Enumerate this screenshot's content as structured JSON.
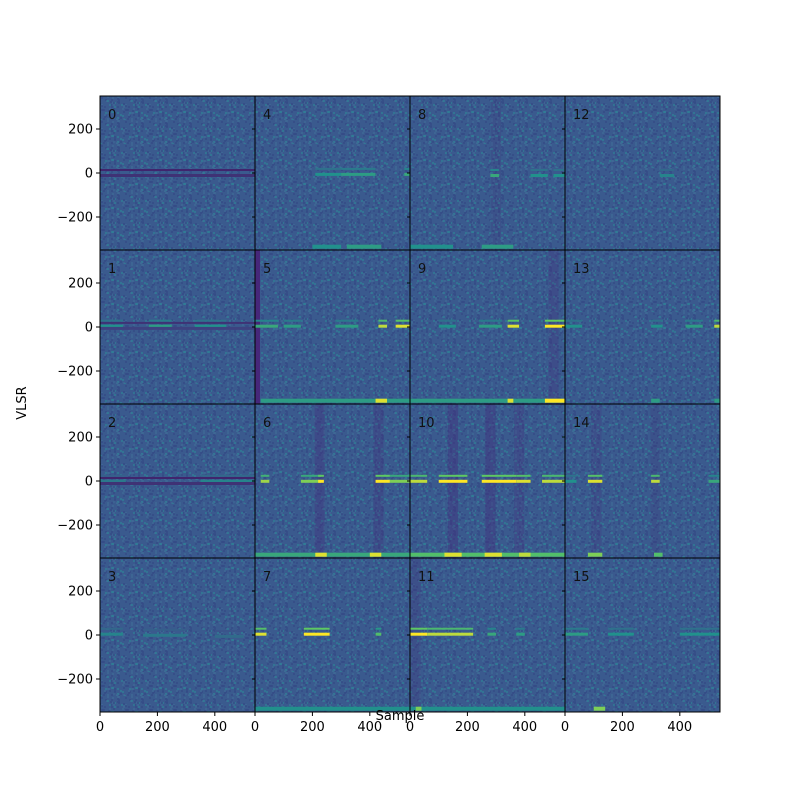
{
  "chart_data": {
    "type": "heatmap",
    "title": "",
    "xlabel": "Sample",
    "ylabel": "VLSR",
    "grid": false,
    "layout": {
      "rows": 4,
      "cols": 4,
      "order": "column-major"
    },
    "xlim": [
      0,
      540
    ],
    "ylim": [
      -350,
      350
    ],
    "x_ticks": [
      0,
      200,
      400
    ],
    "y_ticks": [
      200,
      0,
      -200
    ],
    "colormap": [
      "#440154",
      "#3b528b",
      "#21918c",
      "#5ec962",
      "#fde725"
    ],
    "background_color": "#3a5a8e",
    "panels": [
      {
        "label": "0",
        "streaks": [
          [
            200,
            260,
            0,
            0.4
          ],
          [
            330,
            440,
            0,
            0.4
          ],
          [
            0,
            540,
            0,
            0.15
          ]
        ],
        "bottom": [],
        "columns": []
      },
      {
        "label": "1",
        "streaks": [
          [
            0,
            80,
            15,
            0.5
          ],
          [
            170,
            250,
            15,
            0.55
          ],
          [
            330,
            440,
            15,
            0.5
          ],
          [
            0,
            540,
            5,
            0.2
          ]
        ],
        "bottom": [],
        "columns": []
      },
      {
        "label": "2",
        "streaks": [
          [
            0,
            90,
            10,
            0.4
          ],
          [
            350,
            540,
            10,
            0.45
          ],
          [
            0,
            540,
            0,
            0.15
          ]
        ],
        "bottom": [],
        "columns": []
      },
      {
        "label": "3",
        "streaks": [
          [
            0,
            80,
            15,
            0.45
          ],
          [
            150,
            300,
            10,
            0.4
          ],
          [
            400,
            500,
            5,
            0.35
          ]
        ],
        "bottom": [],
        "columns": []
      },
      {
        "label": "4",
        "streaks": [
          [
            210,
            300,
            5,
            0.5
          ],
          [
            300,
            420,
            5,
            0.55
          ],
          [
            520,
            540,
            5,
            0.6
          ]
        ],
        "bottom": [
          [
            200,
            300,
            0.5
          ],
          [
            320,
            440,
            0.55
          ]
        ],
        "columns": []
      },
      {
        "label": "5",
        "streaks": [
          [
            0,
            80,
            15,
            0.6
          ],
          [
            100,
            160,
            15,
            0.55
          ],
          [
            280,
            360,
            15,
            0.55
          ],
          [
            430,
            460,
            15,
            0.9
          ],
          [
            490,
            540,
            15,
            0.95
          ]
        ],
        "bottom": [
          [
            20,
            540,
            0.55
          ],
          [
            420,
            460,
            0.95
          ]
        ],
        "columns": [
          [
            0,
            150,
            0.12
          ]
        ]
      },
      {
        "label": "6",
        "streaks": [
          [
            20,
            50,
            10,
            0.85
          ],
          [
            160,
            230,
            10,
            0.8
          ],
          [
            220,
            240,
            10,
            1
          ],
          [
            420,
            470,
            10,
            1
          ],
          [
            470,
            540,
            10,
            0.8
          ]
        ],
        "bottom": [
          [
            0,
            540,
            0.6
          ],
          [
            210,
            250,
            0.95
          ],
          [
            400,
            440,
            0.95
          ]
        ],
        "columns": [
          [
            225,
            0.3
          ],
          [
            430,
            0.28
          ]
        ]
      },
      {
        "label": "7",
        "streaks": [
          [
            0,
            40,
            15,
            0.95
          ],
          [
            170,
            260,
            15,
            1
          ],
          [
            420,
            440,
            15,
            0.7
          ]
        ],
        "bottom": [
          [
            0,
            540,
            0.5
          ]
        ],
        "columns": []
      },
      {
        "label": "8",
        "streaks": [
          [
            280,
            310,
            0,
            0.6
          ],
          [
            420,
            480,
            0,
            0.5
          ],
          [
            500,
            540,
            0,
            0.5
          ]
        ],
        "bottom": [
          [
            0,
            150,
            0.5
          ],
          [
            250,
            360,
            0.55
          ]
        ],
        "columns": [
          [
            300,
            0.15
          ]
        ]
      },
      {
        "label": "9",
        "streaks": [
          [
            100,
            160,
            15,
            0.5
          ],
          [
            240,
            320,
            15,
            0.55
          ],
          [
            340,
            380,
            15,
            0.95
          ],
          [
            470,
            540,
            15,
            1
          ]
        ],
        "bottom": [
          [
            0,
            540,
            0.55
          ],
          [
            340,
            360,
            0.95
          ],
          [
            470,
            540,
            1
          ]
        ],
        "columns": [
          [
            500,
            0.25
          ]
        ]
      },
      {
        "label": "10",
        "streaks": [
          [
            0,
            60,
            10,
            0.9
          ],
          [
            100,
            200,
            10,
            1
          ],
          [
            250,
            370,
            10,
            1
          ],
          [
            370,
            420,
            10,
            0.95
          ],
          [
            460,
            540,
            10,
            0.9
          ]
        ],
        "bottom": [
          [
            0,
            540,
            0.7
          ],
          [
            120,
            180,
            0.95
          ],
          [
            260,
            320,
            0.95
          ],
          [
            380,
            420,
            0.9
          ]
        ],
        "columns": [
          [
            150,
            0.35
          ],
          [
            280,
            0.35
          ],
          [
            380,
            0.25
          ]
        ]
      },
      {
        "label": "11",
        "streaks": [
          [
            0,
            60,
            15,
            1
          ],
          [
            60,
            220,
            15,
            0.9
          ],
          [
            270,
            300,
            15,
            0.6
          ],
          [
            370,
            400,
            15,
            0.55
          ]
        ],
        "bottom": [
          [
            0,
            540,
            0.5
          ],
          [
            20,
            40,
            0.8
          ]
        ],
        "columns": [
          [
            20,
            0.2
          ]
        ]
      },
      {
        "label": "12",
        "streaks": [
          [
            330,
            380,
            0,
            0.45
          ]
        ],
        "bottom": [],
        "columns": []
      },
      {
        "label": "13",
        "streaks": [
          [
            0,
            60,
            15,
            0.5
          ],
          [
            300,
            340,
            15,
            0.5
          ],
          [
            420,
            480,
            15,
            0.55
          ],
          [
            520,
            540,
            15,
            0.9
          ]
        ],
        "bottom": [
          [
            300,
            330,
            0.55
          ],
          [
            520,
            540,
            0.55
          ]
        ],
        "columns": []
      },
      {
        "label": "14",
        "streaks": [
          [
            0,
            40,
            10,
            0.5
          ],
          [
            80,
            130,
            10,
            0.95
          ],
          [
            300,
            330,
            10,
            0.9
          ],
          [
            500,
            540,
            10,
            0.6
          ]
        ],
        "bottom": [
          [
            80,
            130,
            0.8
          ],
          [
            310,
            340,
            0.7
          ]
        ],
        "columns": [
          [
            110,
            0.18
          ],
          [
            315,
            0.15
          ]
        ]
      },
      {
        "label": "15",
        "streaks": [
          [
            0,
            80,
            15,
            0.55
          ],
          [
            150,
            240,
            15,
            0.5
          ],
          [
            400,
            540,
            15,
            0.5
          ]
        ],
        "bottom": [
          [
            100,
            140,
            0.8
          ]
        ],
        "columns": []
      }
    ]
  }
}
